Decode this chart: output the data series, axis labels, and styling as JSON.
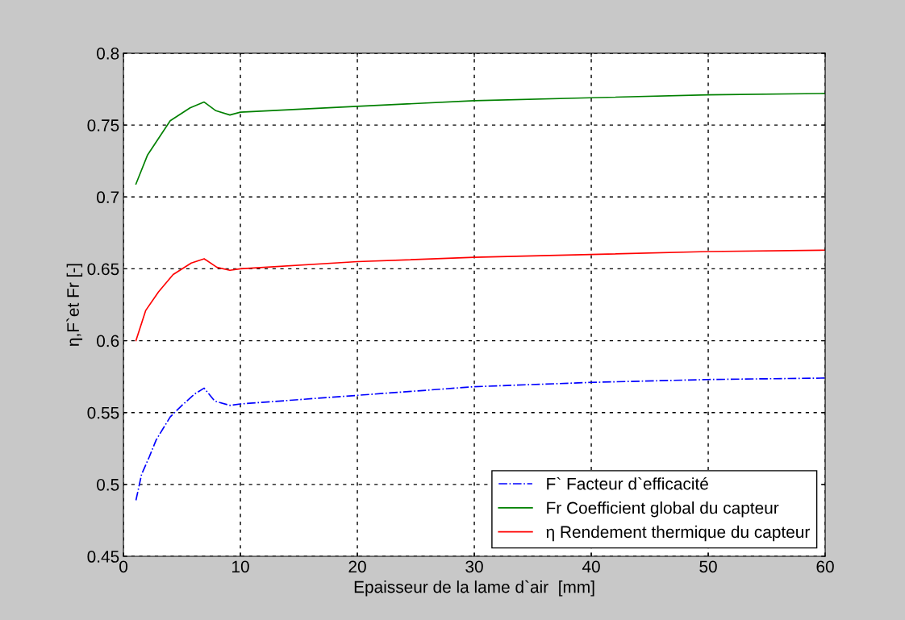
{
  "chart_data": {
    "type": "line",
    "xlabel": "Epaisseur de la lame d`air  [mm]",
    "ylabel": "η,F`et Fr [-]",
    "xlim": [
      0,
      60
    ],
    "xticks": [
      0,
      10,
      20,
      30,
      40,
      50,
      60
    ],
    "ylim": [
      0.45,
      0.8
    ],
    "yticks": [
      0.45,
      0.5,
      0.55,
      0.6,
      0.65,
      0.7,
      0.75,
      0.8
    ],
    "grid": true,
    "legend": "bottom right",
    "marker": "none",
    "series": [
      {
        "name": "F` Facteur d`efficacité",
        "color": "#0000ff",
        "line_style": "dashdot",
        "x": [
          1.07,
          1.55,
          2.2,
          2.8,
          4.0,
          5.0,
          6.1,
          6.9,
          7.8,
          9.1,
          10,
          20,
          30,
          40,
          50,
          60
        ],
        "values": [
          0.489,
          0.507,
          0.519,
          0.531,
          0.547,
          0.555,
          0.563,
          0.567,
          0.558,
          0.555,
          0.556,
          0.562,
          0.568,
          0.571,
          0.573,
          0.574
        ]
      },
      {
        "name": "Fr Coefficient global du capteur",
        "color": "#008000",
        "line_style": "solid",
        "x": [
          1.07,
          2.05,
          4.0,
          5.7,
          6.9,
          7.9,
          9.1,
          10,
          20,
          30,
          40,
          50,
          60
        ],
        "values": [
          0.709,
          0.729,
          0.753,
          0.762,
          0.766,
          0.76,
          0.757,
          0.759,
          0.763,
          0.767,
          0.769,
          0.771,
          0.772
        ]
      },
      {
        "name": "η Rendement thermique du capteur",
        "color": "#ff0000",
        "line_style": "solid",
        "x": [
          1.07,
          1.9,
          3.0,
          4.25,
          5.8,
          6.9,
          8.0,
          9.1,
          10,
          20,
          30,
          40,
          50,
          60
        ],
        "values": [
          0.6,
          0.621,
          0.634,
          0.646,
          0.654,
          0.657,
          0.651,
          0.649,
          0.65,
          0.655,
          0.658,
          0.66,
          0.662,
          0.663
        ]
      }
    ]
  }
}
